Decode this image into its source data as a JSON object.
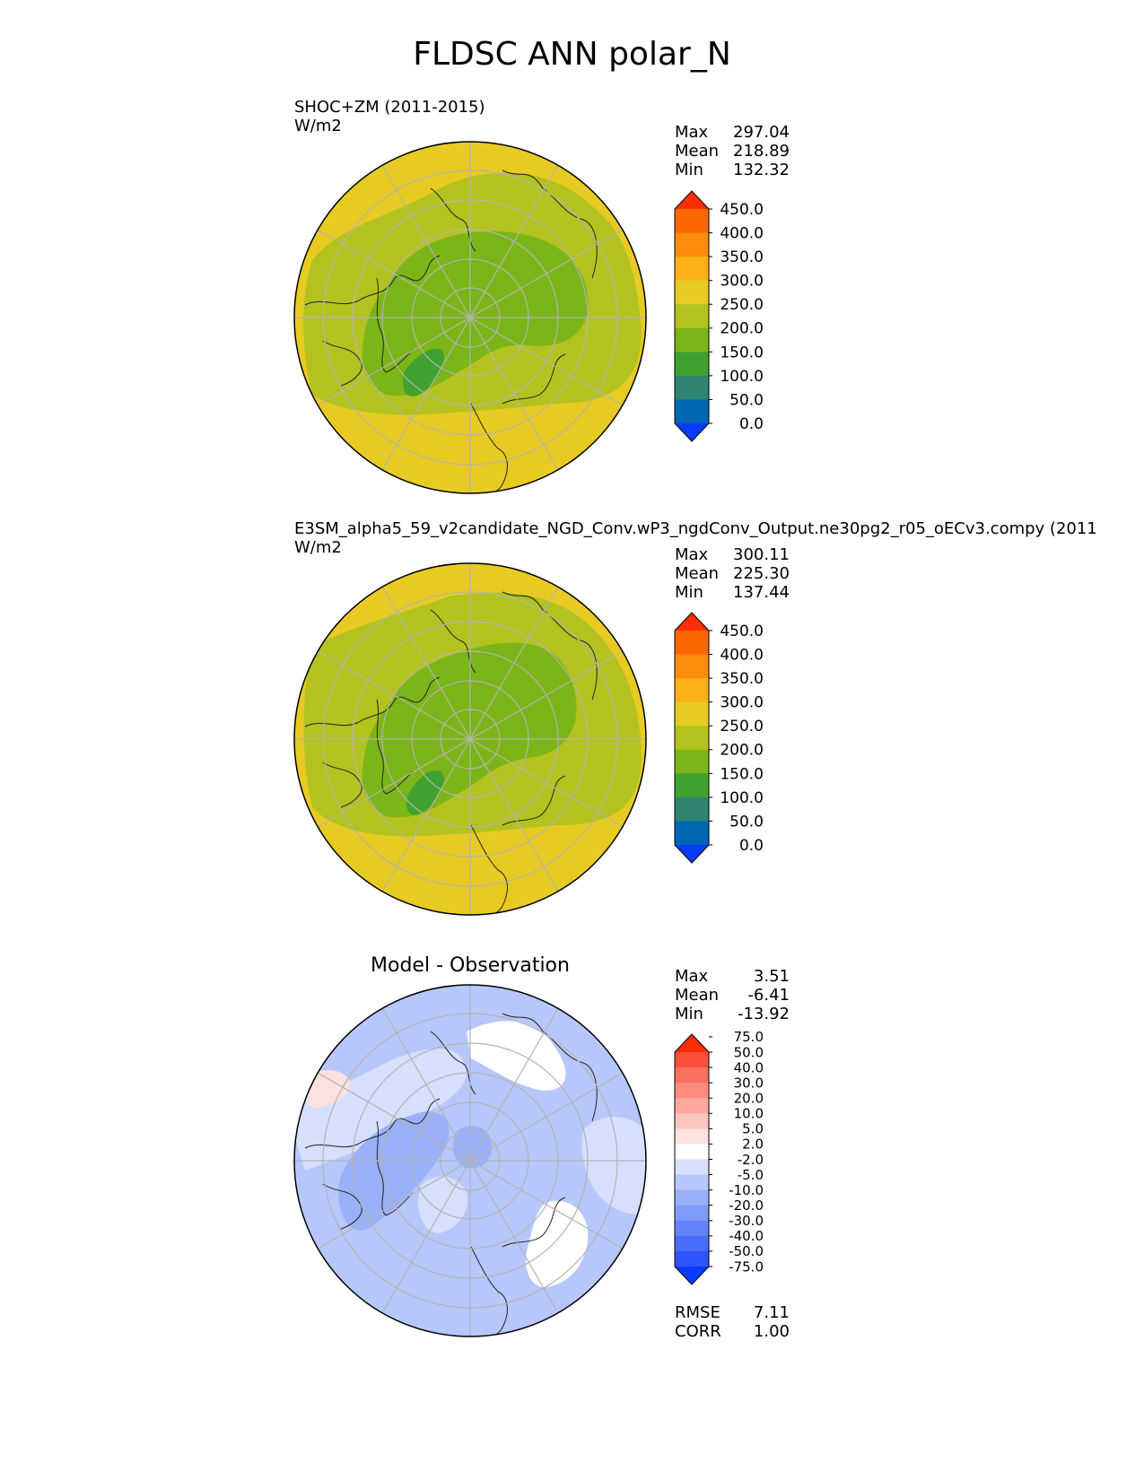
{
  "title": "FLDSC ANN polar_N",
  "panels": [
    {
      "left_title": "SHOC+ZM (2011-2015)",
      "units": "W/m2",
      "center_title": "",
      "stats": [
        {
          "label": "Max",
          "value": "297.04"
        },
        {
          "label": "Mean",
          "value": "218.89"
        },
        {
          "label": "Min",
          "value": "132.32"
        }
      ],
      "colorbar": {
        "colors": [
          "#0a3cff",
          "#0066b3",
          "#2f8572",
          "#3fa22f",
          "#7cb517",
          "#b4c21f",
          "#e8cb22",
          "#fbb117",
          "#fb8c0c",
          "#fb6600",
          "#fc2e06"
        ],
        "ticks": [
          "0.0",
          "50.0",
          "100.0",
          "150.0",
          "200.0",
          "250.0",
          "300.0",
          "350.0",
          "400.0",
          "450.0"
        ]
      }
    },
    {
      "left_title": "E3SM_alpha5_59_v2candidate_NGD_Conv.wP3_ngdConv_Output.ne30pg2_r05_oECv3.compy (2011",
      "units": "W/m2",
      "center_title": "",
      "stats": [
        {
          "label": "Max",
          "value": "300.11"
        },
        {
          "label": "Mean",
          "value": "225.30"
        },
        {
          "label": "Min",
          "value": "137.44"
        }
      ],
      "colorbar": {
        "colors": [
          "#0a3cff",
          "#0066b3",
          "#2f8572",
          "#3fa22f",
          "#7cb517",
          "#b4c21f",
          "#e8cb22",
          "#fbb117",
          "#fb8c0c",
          "#fb6600",
          "#fc2e06"
        ],
        "ticks": [
          "0.0",
          "50.0",
          "100.0",
          "150.0",
          "200.0",
          "250.0",
          "300.0",
          "350.0",
          "400.0",
          "450.0"
        ]
      }
    },
    {
      "left_title": "",
      "units": "",
      "center_title": "Model - Observation",
      "stats": [
        {
          "label": "Max",
          "value": "3.51"
        },
        {
          "label": "Mean",
          "value": "-6.41"
        },
        {
          "label": "Min",
          "value": "-13.92"
        }
      ],
      "extra_stats": [
        {
          "label": "RMSE",
          "value": "7.11"
        },
        {
          "label": "CORR",
          "value": "1.00"
        }
      ],
      "colorbar": {
        "colors": [
          "#0a3cff",
          "#2d55ff",
          "#4a6cfb",
          "#6584fb",
          "#7f9afb",
          "#9ab0fb",
          "#b7c7fb",
          "#d6dffb",
          "#ffffff",
          "#fbe2df",
          "#fbc6c0",
          "#fba99f",
          "#fb8c7f",
          "#fb705f",
          "#fb4f3a",
          "#fc2e06"
        ],
        "ticks": [
          "-75.0",
          "-50.0",
          "-40.0",
          "-30.0",
          "-20.0",
          "-10.0",
          "-5.0",
          "-2.0",
          "2.0",
          "5.0",
          "10.0",
          "20.0",
          "30.0",
          "40.0",
          "50.0",
          "75.0"
        ]
      }
    }
  ],
  "chart_data": [
    {
      "type": "heatmap",
      "projection": "north-polar-stereographic",
      "title": "SHOC+ZM (2011-2015)",
      "units": "W/m2",
      "max": 297.04,
      "mean": 218.89,
      "min": 132.32,
      "levels": [
        0,
        50,
        100,
        150,
        200,
        250,
        300,
        350,
        400,
        450
      ],
      "extend": "both"
    },
    {
      "type": "heatmap",
      "projection": "north-polar-stereographic",
      "title": "E3SM_alpha5_59_v2candidate_NGD_Conv.wP3_ngdConv_Output.ne30pg2_r05_oECv3.compy (2011",
      "units": "W/m2",
      "max": 300.11,
      "mean": 225.3,
      "min": 137.44,
      "levels": [
        0,
        50,
        100,
        150,
        200,
        250,
        300,
        350,
        400,
        450
      ],
      "extend": "both"
    },
    {
      "type": "heatmap",
      "projection": "north-polar-stereographic",
      "title": "Model - Observation",
      "max": 3.51,
      "mean": -6.41,
      "min": -13.92,
      "rmse": 7.11,
      "corr": 1.0,
      "levels": [
        -75,
        -50,
        -40,
        -30,
        -20,
        -10,
        -5,
        -2,
        2,
        5,
        10,
        20,
        30,
        40,
        50,
        75
      ],
      "extend": "both"
    }
  ]
}
